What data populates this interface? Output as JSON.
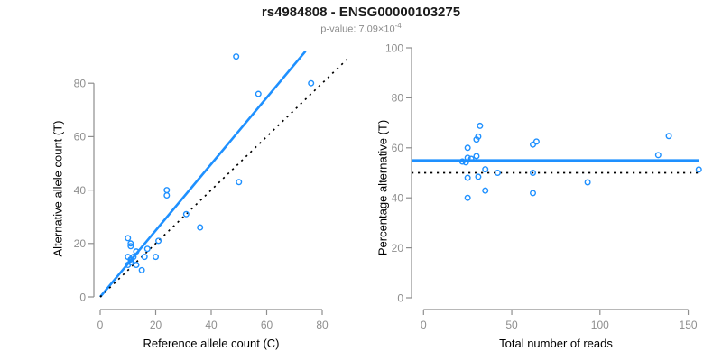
{
  "header": {
    "title": "rs4984808 - ENSG00000103275",
    "pvalue_text": "p-value: 7.09×10",
    "pvalue_exponent": "-4"
  },
  "colors": {
    "accent_blue": "#1e90ff",
    "dotted_black": "#000000",
    "axis_gray": "#8e8e8e",
    "tick_label_gray": "#8e8e8e",
    "title_black": "#1a1a1a",
    "subtitle_gray": "#8c8c8c"
  },
  "chart_data": [
    {
      "type": "scatter",
      "title": "rs4984808 - ENSG00000103275",
      "subtitle": "p-value: 7.09e-4",
      "xlabel": "Reference allele count (C)",
      "ylabel": "Alternative allele count (T)",
      "xlim": [
        0,
        88
      ],
      "ylim": [
        0,
        93
      ],
      "xticks": [
        0,
        20,
        40,
        60,
        80
      ],
      "yticks": [
        0,
        20,
        40,
        60,
        80
      ],
      "grid": false,
      "legend": "none",
      "marker": "open-circle",
      "points": [
        [
          10,
          22
        ],
        [
          11,
          20
        ],
        [
          11,
          19
        ],
        [
          13,
          17
        ],
        [
          17,
          18
        ],
        [
          10,
          15
        ],
        [
          12,
          15
        ],
        [
          11,
          14
        ],
        [
          11,
          13
        ],
        [
          10,
          12
        ],
        [
          13,
          12
        ],
        [
          16,
          15
        ],
        [
          15,
          10
        ],
        [
          20,
          15
        ],
        [
          21,
          21
        ],
        [
          24,
          40
        ],
        [
          24,
          38
        ],
        [
          31,
          31
        ],
        [
          36,
          26
        ],
        [
          50,
          43
        ],
        [
          49,
          90
        ],
        [
          57,
          76
        ],
        [
          76,
          80
        ]
      ],
      "lines": [
        {
          "name": "regression-line",
          "style": "solid",
          "color": "#1e90ff",
          "from": [
            0,
            0
          ],
          "to": [
            74,
            92
          ]
        },
        {
          "name": "identity-line",
          "style": "dotted",
          "color": "#000000",
          "from": [
            0,
            0
          ],
          "to": [
            89,
            89
          ]
        }
      ]
    },
    {
      "type": "scatter",
      "xlabel": "Total number of reads",
      "ylabel": "Percentage alternative (T)",
      "xlim": [
        0,
        157
      ],
      "ylim": [
        0,
        100
      ],
      "xticks": [
        0,
        50,
        100,
        150
      ],
      "yticks": [
        0,
        20,
        40,
        60,
        80,
        100
      ],
      "grid": false,
      "legend": "none",
      "marker": "open-circle",
      "points": [
        [
          32,
          68.8
        ],
        [
          31,
          64.5
        ],
        [
          30,
          63.3
        ],
        [
          30,
          56.7
        ],
        [
          35,
          51.4
        ],
        [
          25,
          60
        ],
        [
          27,
          55.6
        ],
        [
          25,
          56
        ],
        [
          24,
          54.2
        ],
        [
          22,
          54.5
        ],
        [
          25,
          48
        ],
        [
          31,
          48.4
        ],
        [
          25,
          40
        ],
        [
          35,
          42.9
        ],
        [
          42,
          50
        ],
        [
          64,
          62.5
        ],
        [
          62,
          61.3
        ],
        [
          62,
          50
        ],
        [
          62,
          41.9
        ],
        [
          93,
          46.2
        ],
        [
          139,
          64.7
        ],
        [
          133,
          57.1
        ],
        [
          156,
          51.3
        ]
      ],
      "lines": [
        {
          "name": "mean-percentage-line",
          "style": "solid",
          "color": "#1e90ff",
          "y": 55
        },
        {
          "name": "fifty-percent-line",
          "style": "dotted",
          "color": "#000000",
          "y": 50
        }
      ]
    }
  ]
}
